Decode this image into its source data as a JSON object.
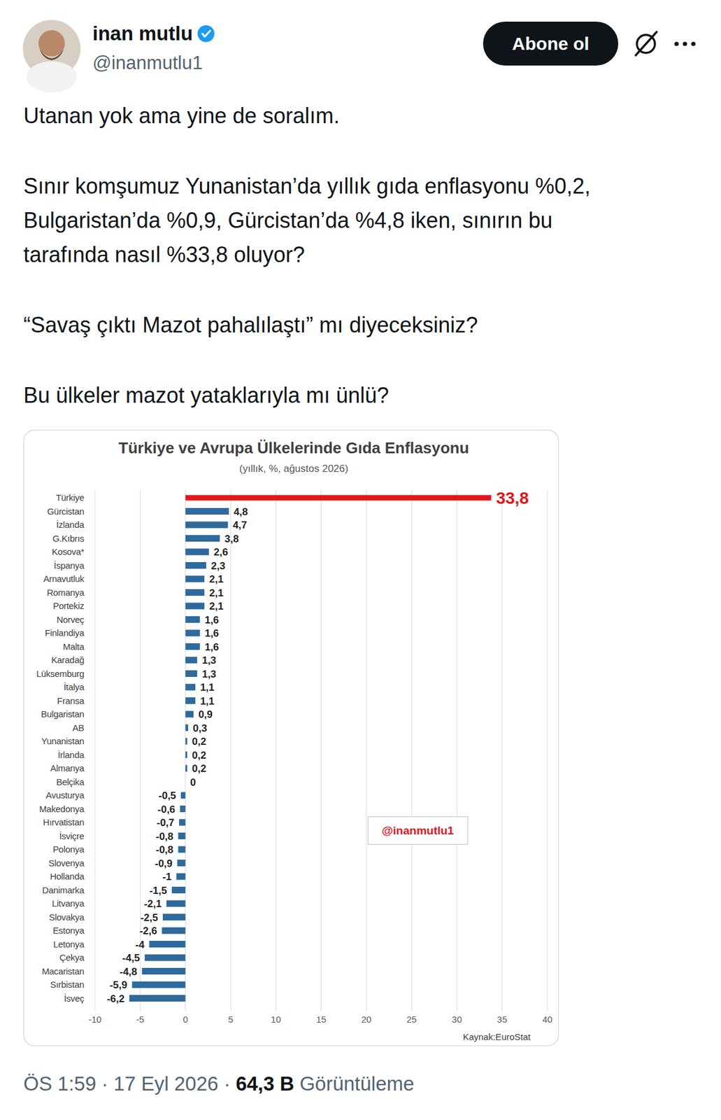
{
  "post": {
    "author": "inan mutlu",
    "handle": "@inanmutlu1",
    "follow_button": "Abone ol",
    "paragraphs": [
      [
        "Utanan yok ama yine de soralım."
      ],
      [
        "Sınır komşumuz Yunanistan’da yıllık gıda enflasyonu %0,2,",
        "Bulgaristan’da %0,9, Gürcistan’da %4,8 iken, sınırın bu",
        "tarafında nasıl %33,8 oluyor?"
      ],
      [
        "“Savaş çıktı Mazot pahalılaştı” mı diyeceksiniz?"
      ],
      [
        "Bu ülkeler mazot yataklarıyla mı ünlü?"
      ]
    ],
    "footer": {
      "time": "ÖS 1:59",
      "date": "17 Eyl 2026",
      "separator": "·",
      "views": "64,3 B",
      "views_label": "Görüntüleme"
    }
  },
  "chart_data": {
    "type": "bar",
    "orientation": "horizontal",
    "title": "Türkiye ve Avrupa Ülkelerinde Gıda Enflasyonu",
    "subtitle": "(yıllık, %, ağustos 2026)",
    "categories": [
      "Türkiye",
      "Gürcistan",
      "İzlanda",
      "G.Kıbrıs",
      "Kosova*",
      "İspanya",
      "Arnavutluk",
      "Romanya",
      "Portekiz",
      "Norveç",
      "Finlandiya",
      "Malta",
      "Karadağ",
      "Lüksemburg",
      "İtalya",
      "Fransa",
      "Bulgaristan",
      "AB",
      "Yunanistan",
      "İrlanda",
      "Almanya",
      "Belçika",
      "Avusturya",
      "Makedonya",
      "Hırvatistan",
      "İsviçre",
      "Polonya",
      "Slovenya",
      "Hollanda",
      "Danimarka",
      "Litvanya",
      "Slovakya",
      "Estonya",
      "Letonya",
      "Çekya",
      "Macaristan",
      "Sırbistan",
      "İsveç"
    ],
    "values": [
      33.8,
      4.8,
      4.7,
      3.8,
      2.6,
      2.3,
      2.1,
      2.1,
      2.1,
      1.6,
      1.6,
      1.6,
      1.3,
      1.3,
      1.1,
      1.1,
      0.9,
      0.3,
      0.2,
      0.2,
      0.2,
      0,
      -0.5,
      -0.6,
      -0.7,
      -0.8,
      -0.8,
      -0.9,
      -1,
      -1.5,
      -2.1,
      -2.5,
      -2.6,
      -4,
      -4.5,
      -4.8,
      -5.9,
      -6.2
    ],
    "value_labels": [
      "33,8",
      "4,8",
      "4,7",
      "3,8",
      "2,6",
      "2,3",
      "2,1",
      "2,1",
      "2,1",
      "1,6",
      "1,6",
      "1,6",
      "1,3",
      "1,3",
      "1,1",
      "1,1",
      "0,9",
      "0,3",
      "0,2",
      "0,2",
      "0,2",
      "0",
      "-0,5",
      "-0,6",
      "-0,7",
      "-0,8",
      "-0,8",
      "-0,9",
      "-1",
      "-1,5",
      "-2,1",
      "-2,5",
      "-2,6",
      "-4",
      "-4,5",
      "-4,8",
      "-5,9",
      "-6,2"
    ],
    "colors": [
      "#e8141b",
      "#2e6a9b",
      "#2e6a9b",
      "#2e6a9b",
      "#2e6a9b",
      "#2e6a9b",
      "#2e6a9b",
      "#2e6a9b",
      "#2e6a9b",
      "#2e6a9b",
      "#2e6a9b",
      "#2e6a9b",
      "#2e6a9b",
      "#2e6a9b",
      "#2e6a9b",
      "#2e6a9b",
      "#2e6a9b",
      "#2e6a9b",
      "#2e6a9b",
      "#2e6a9b",
      "#2e6a9b",
      "#2e6a9b",
      "#2e6a9b",
      "#2e6a9b",
      "#2e6a9b",
      "#2e6a9b",
      "#2e6a9b",
      "#2e6a9b",
      "#2e6a9b",
      "#2e6a9b",
      "#2e6a9b",
      "#2e6a9b",
      "#2e6a9b",
      "#2e6a9b",
      "#2e6a9b",
      "#2e6a9b",
      "#2e6a9b",
      "#2e6a9b"
    ],
    "xlim": [
      -10,
      40
    ],
    "xticks": [
      -10,
      -5,
      0,
      5,
      10,
      15,
      20,
      25,
      30,
      35,
      40
    ],
    "grid": true,
    "data_labels": true,
    "annotations": [
      "@inanmutlu1",
      "Kaynak:EuroStat"
    ]
  }
}
